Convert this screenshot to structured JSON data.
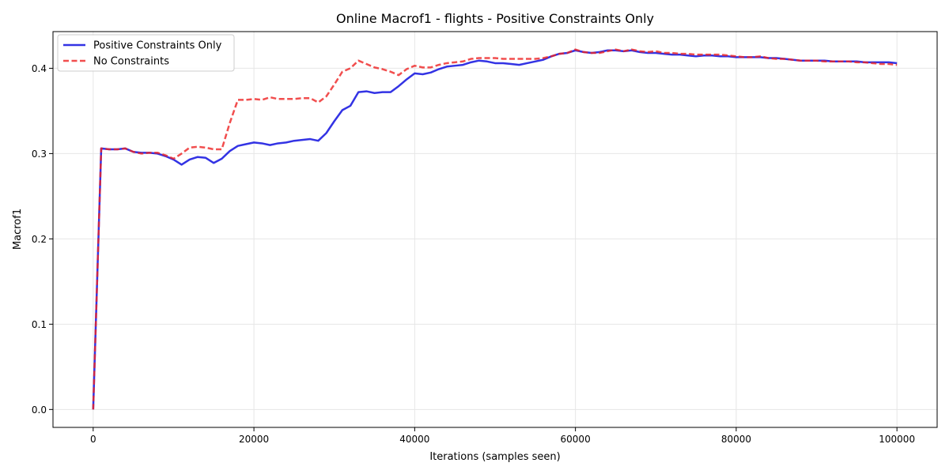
{
  "chart_data": {
    "type": "line",
    "title": "Online Macrof1 - flights - Positive Constraints Only",
    "xlabel": "Iterations (samples seen)",
    "ylabel": "Macrof1",
    "xlim": [
      -5000,
      105000
    ],
    "ylim": [
      -0.021,
      0.443
    ],
    "x_ticks": [
      0,
      20000,
      40000,
      60000,
      80000,
      100000
    ],
    "x_tick_labels": [
      "0",
      "20000",
      "40000",
      "60000",
      "80000",
      "100000"
    ],
    "y_ticks": [
      0.0,
      0.1,
      0.2,
      0.3,
      0.4
    ],
    "y_tick_labels": [
      "0.0",
      "0.1",
      "0.2",
      "0.3",
      "0.4"
    ],
    "grid": true,
    "legend_position": "top-left",
    "series": [
      {
        "name": "Positive Constraints Only",
        "color": "#0000dd",
        "style": "solid",
        "x": [
          0,
          1000,
          2000,
          3000,
          4000,
          5000,
          6000,
          7000,
          8000,
          9000,
          10000,
          11000,
          12000,
          13000,
          14000,
          15000,
          16000,
          17000,
          18000,
          19000,
          20000,
          21000,
          22000,
          23000,
          24000,
          25000,
          26000,
          27000,
          28000,
          29000,
          30000,
          31000,
          32000,
          33000,
          34000,
          35000,
          36000,
          37000,
          38000,
          39000,
          40000,
          41000,
          42000,
          43000,
          44000,
          45000,
          46000,
          47000,
          48000,
          49000,
          50000,
          51000,
          52000,
          53000,
          54000,
          55000,
          56000,
          57000,
          58000,
          59000,
          60000,
          61000,
          62000,
          63000,
          64000,
          65000,
          66000,
          67000,
          68000,
          69000,
          70000,
          71000,
          72000,
          73000,
          74000,
          75000,
          76000,
          77000,
          78000,
          79000,
          80000,
          81000,
          82000,
          83000,
          84000,
          85000,
          86000,
          87000,
          88000,
          89000,
          90000,
          91000,
          92000,
          93000,
          94000,
          95000,
          96000,
          97000,
          98000,
          99000,
          100000
        ],
        "y": [
          0.0,
          0.306,
          0.305,
          0.305,
          0.306,
          0.302,
          0.301,
          0.301,
          0.3,
          0.297,
          0.293,
          0.287,
          0.293,
          0.296,
          0.295,
          0.289,
          0.294,
          0.303,
          0.309,
          0.311,
          0.313,
          0.312,
          0.31,
          0.312,
          0.313,
          0.315,
          0.316,
          0.317,
          0.315,
          0.324,
          0.338,
          0.351,
          0.356,
          0.372,
          0.373,
          0.371,
          0.372,
          0.372,
          0.379,
          0.387,
          0.394,
          0.393,
          0.395,
          0.399,
          0.402,
          0.403,
          0.404,
          0.407,
          0.409,
          0.408,
          0.406,
          0.406,
          0.405,
          0.404,
          0.406,
          0.408,
          0.41,
          0.414,
          0.417,
          0.418,
          0.421,
          0.419,
          0.418,
          0.419,
          0.421,
          0.421,
          0.42,
          0.421,
          0.419,
          0.418,
          0.418,
          0.417,
          0.416,
          0.416,
          0.415,
          0.414,
          0.415,
          0.415,
          0.414,
          0.414,
          0.413,
          0.413,
          0.413,
          0.413,
          0.412,
          0.412,
          0.411,
          0.41,
          0.409,
          0.409,
          0.409,
          0.409,
          0.408,
          0.408,
          0.408,
          0.408,
          0.407,
          0.407,
          0.407,
          0.407,
          0.406
        ]
      },
      {
        "name": "No Constraints",
        "color": "#ee2222",
        "style": "dashed",
        "x": [
          0,
          1000,
          2000,
          3000,
          4000,
          5000,
          6000,
          7000,
          8000,
          9000,
          10000,
          11000,
          12000,
          13000,
          14000,
          15000,
          16000,
          17000,
          18000,
          19000,
          20000,
          21000,
          22000,
          23000,
          24000,
          25000,
          26000,
          27000,
          28000,
          29000,
          30000,
          31000,
          32000,
          33000,
          34000,
          35000,
          36000,
          37000,
          38000,
          39000,
          40000,
          41000,
          42000,
          43000,
          44000,
          45000,
          46000,
          47000,
          48000,
          49000,
          50000,
          51000,
          52000,
          53000,
          54000,
          55000,
          56000,
          57000,
          58000,
          59000,
          60000,
          61000,
          62000,
          63000,
          64000,
          65000,
          66000,
          67000,
          68000,
          69000,
          70000,
          71000,
          72000,
          73000,
          74000,
          75000,
          76000,
          77000,
          78000,
          79000,
          80000,
          81000,
          82000,
          83000,
          84000,
          85000,
          86000,
          87000,
          88000,
          89000,
          90000,
          91000,
          92000,
          93000,
          94000,
          95000,
          96000,
          97000,
          98000,
          99000,
          100000
        ],
        "y": [
          0.0,
          0.306,
          0.305,
          0.305,
          0.306,
          0.302,
          0.3,
          0.301,
          0.301,
          0.298,
          0.294,
          0.3,
          0.307,
          0.308,
          0.307,
          0.305,
          0.305,
          0.336,
          0.363,
          0.363,
          0.364,
          0.363,
          0.366,
          0.364,
          0.364,
          0.364,
          0.365,
          0.365,
          0.36,
          0.367,
          0.381,
          0.396,
          0.4,
          0.409,
          0.405,
          0.401,
          0.399,
          0.396,
          0.392,
          0.399,
          0.403,
          0.401,
          0.401,
          0.404,
          0.406,
          0.407,
          0.408,
          0.411,
          0.412,
          0.412,
          0.412,
          0.411,
          0.411,
          0.411,
          0.411,
          0.411,
          0.412,
          0.414,
          0.417,
          0.418,
          0.422,
          0.419,
          0.418,
          0.418,
          0.42,
          0.422,
          0.42,
          0.422,
          0.42,
          0.419,
          0.42,
          0.418,
          0.418,
          0.417,
          0.417,
          0.416,
          0.416,
          0.416,
          0.416,
          0.415,
          0.414,
          0.413,
          0.413,
          0.414,
          0.412,
          0.411,
          0.411,
          0.41,
          0.409,
          0.409,
          0.409,
          0.408,
          0.408,
          0.408,
          0.408,
          0.407,
          0.407,
          0.406,
          0.405,
          0.405,
          0.404
        ]
      }
    ]
  }
}
